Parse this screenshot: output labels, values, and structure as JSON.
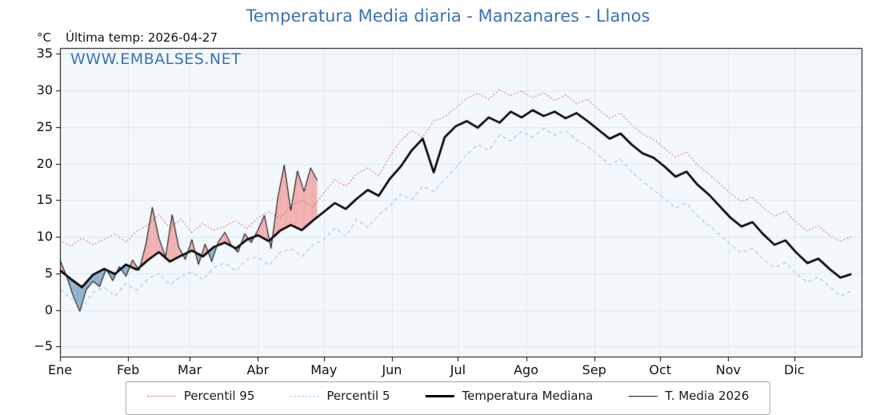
{
  "header": {
    "title": "Temperatura Media diaria - Manzanares - Llanos",
    "title_color": "#3d72b4"
  },
  "annotations": {
    "y_unit": "°C",
    "last_temp": "Última temp: 2026-04-27",
    "watermark": "WWW.EMBALSES.NET",
    "watermark_color": "#3d72b4"
  },
  "chart_data": {
    "type": "line",
    "title": "Temperatura Media diaria - Manzanares - Llanos",
    "ylabel": "°C",
    "xlim": [
      0,
      365
    ],
    "ylim": [
      -6.5,
      35.8
    ],
    "plot_bg": "#f3f8fc",
    "grid_color": "#dde9f2",
    "fill_above": "#f2aeae",
    "fill_below": "#8fafcd",
    "y_ticks": [
      -5,
      0,
      5,
      10,
      15,
      20,
      25,
      30,
      35
    ],
    "y_tick_labels": [
      "−5",
      "0",
      "5",
      "10",
      "15",
      "20",
      "25",
      "30",
      "35"
    ],
    "x_tick_days": [
      0,
      31,
      59,
      90,
      120,
      151,
      181,
      212,
      243,
      273,
      304,
      334
    ],
    "x_tick_labels": [
      "Ene",
      "Feb",
      "Mar",
      "Abr",
      "May",
      "Jun",
      "Jul",
      "Ago",
      "Sep",
      "Oct",
      "Nov",
      "Dic"
    ],
    "common_days": [
      0,
      5,
      10,
      15,
      20,
      25,
      30,
      35,
      40,
      45,
      50,
      55,
      60,
      65,
      70,
      75,
      80,
      85,
      90,
      95,
      100,
      105,
      110,
      115,
      120,
      125,
      130,
      135,
      140,
      145,
      150,
      155,
      160,
      165,
      170,
      175,
      180,
      185,
      190,
      195,
      200,
      205,
      210,
      215,
      220,
      225,
      230,
      235,
      240,
      245,
      250,
      255,
      260,
      265,
      270,
      275,
      280,
      285,
      290,
      295,
      300,
      305,
      310,
      315,
      320,
      325,
      330,
      335,
      340,
      345,
      350,
      355,
      360
    ],
    "series": [
      {
        "name": "Percentil 95",
        "color": "#dd5c5c",
        "style": "dotted",
        "width": 1.2,
        "values": [
          9.5,
          8.7,
          9.8,
          8.9,
          9.6,
          10.4,
          9.2,
          10.8,
          11.6,
          13.0,
          11.2,
          12.4,
          10.6,
          11.8,
          10.9,
          11.4,
          12.2,
          11.1,
          12.6,
          13.4,
          12.5,
          14.2,
          15.0,
          14.1,
          16.0,
          17.8,
          16.9,
          18.6,
          19.4,
          18.3,
          21.0,
          23.2,
          24.5,
          23.6,
          25.8,
          26.4,
          27.6,
          28.9,
          29.6,
          28.8,
          30.1,
          29.3,
          29.9,
          29.0,
          29.7,
          28.6,
          29.4,
          28.2,
          28.8,
          27.4,
          26.2,
          26.9,
          25.3,
          24.1,
          23.3,
          22.1,
          20.9,
          21.6,
          19.8,
          18.6,
          17.3,
          15.9,
          14.8,
          15.4,
          13.9,
          12.8,
          13.5,
          11.9,
          10.8,
          11.5,
          10.2,
          9.4,
          10.0
        ]
      },
      {
        "name": "Percentil 5",
        "color": "#a5cfe3",
        "style": "dashed",
        "width": 1.2,
        "values": [
          2.8,
          1.6,
          0.2,
          2.4,
          3.1,
          1.9,
          3.6,
          2.7,
          4.2,
          5.0,
          3.4,
          4.6,
          5.2,
          4.1,
          5.8,
          6.4,
          5.3,
          6.9,
          7.2,
          6.1,
          7.8,
          8.4,
          7.3,
          8.9,
          9.6,
          11.2,
          10.1,
          12.4,
          11.3,
          13.0,
          14.2,
          15.8,
          15.1,
          16.9,
          16.2,
          17.8,
          19.4,
          21.2,
          22.6,
          21.8,
          23.9,
          23.1,
          24.4,
          23.6,
          24.8,
          23.9,
          24.5,
          23.2,
          22.4,
          21.1,
          19.8,
          20.6,
          18.9,
          17.6,
          16.4,
          15.2,
          13.9,
          14.6,
          12.8,
          11.6,
          10.3,
          8.9,
          7.8,
          8.4,
          6.9,
          5.8,
          6.5,
          4.9,
          3.8,
          4.5,
          3.2,
          1.9,
          2.6
        ]
      },
      {
        "name": "Temperatura Mediana",
        "color": "#000000",
        "style": "solid",
        "width": 2.6,
        "values": [
          5.4,
          4.2,
          3.1,
          4.8,
          5.6,
          4.9,
          6.2,
          5.5,
          6.8,
          7.9,
          6.6,
          7.4,
          8.1,
          7.3,
          8.6,
          9.2,
          8.4,
          9.6,
          10.2,
          9.4,
          10.8,
          11.6,
          10.9,
          12.2,
          13.4,
          14.6,
          13.8,
          15.2,
          16.4,
          15.6,
          17.9,
          19.6,
          21.8,
          23.4,
          18.8,
          23.6,
          25.1,
          25.8,
          24.9,
          26.3,
          25.6,
          27.1,
          26.3,
          27.3,
          26.5,
          27.1,
          26.2,
          26.9,
          25.8,
          24.6,
          23.4,
          24.1,
          22.6,
          21.4,
          20.8,
          19.6,
          18.2,
          18.9,
          17.1,
          15.8,
          14.2,
          12.6,
          11.4,
          12.0,
          10.3,
          8.9,
          9.5,
          7.8,
          6.4,
          7.0,
          5.6,
          4.4,
          4.9
        ]
      },
      {
        "name": "T. Media 2026",
        "color": "#1a1a1a",
        "style": "solid",
        "width": 1.1,
        "days": [
          0,
          3,
          6,
          9,
          12,
          15,
          18,
          21,
          24,
          27,
          30,
          33,
          36,
          39,
          42,
          45,
          48,
          51,
          54,
          57,
          60,
          63,
          66,
          69,
          72,
          75,
          78,
          81,
          84,
          87,
          90,
          93,
          96,
          99,
          102,
          105,
          108,
          111,
          114,
          117
        ],
        "values": [
          6.8,
          4.6,
          1.9,
          -0.2,
          2.8,
          3.9,
          3.2,
          5.6,
          4.0,
          5.9,
          4.6,
          6.8,
          5.4,
          8.9,
          14.0,
          9.8,
          7.2,
          13.0,
          8.6,
          6.9,
          9.6,
          6.2,
          9.0,
          6.6,
          9.3,
          10.6,
          8.8,
          7.9,
          10.4,
          9.2,
          10.9,
          12.9,
          8.4,
          15.2,
          19.8,
          13.6,
          19.0,
          16.2,
          19.4,
          17.7
        ]
      }
    ],
    "legend": {
      "position": "bottom-center",
      "entries": [
        "Percentil 95",
        "Percentil 5",
        "Temperatura Mediana",
        "T. Media 2026"
      ]
    }
  }
}
